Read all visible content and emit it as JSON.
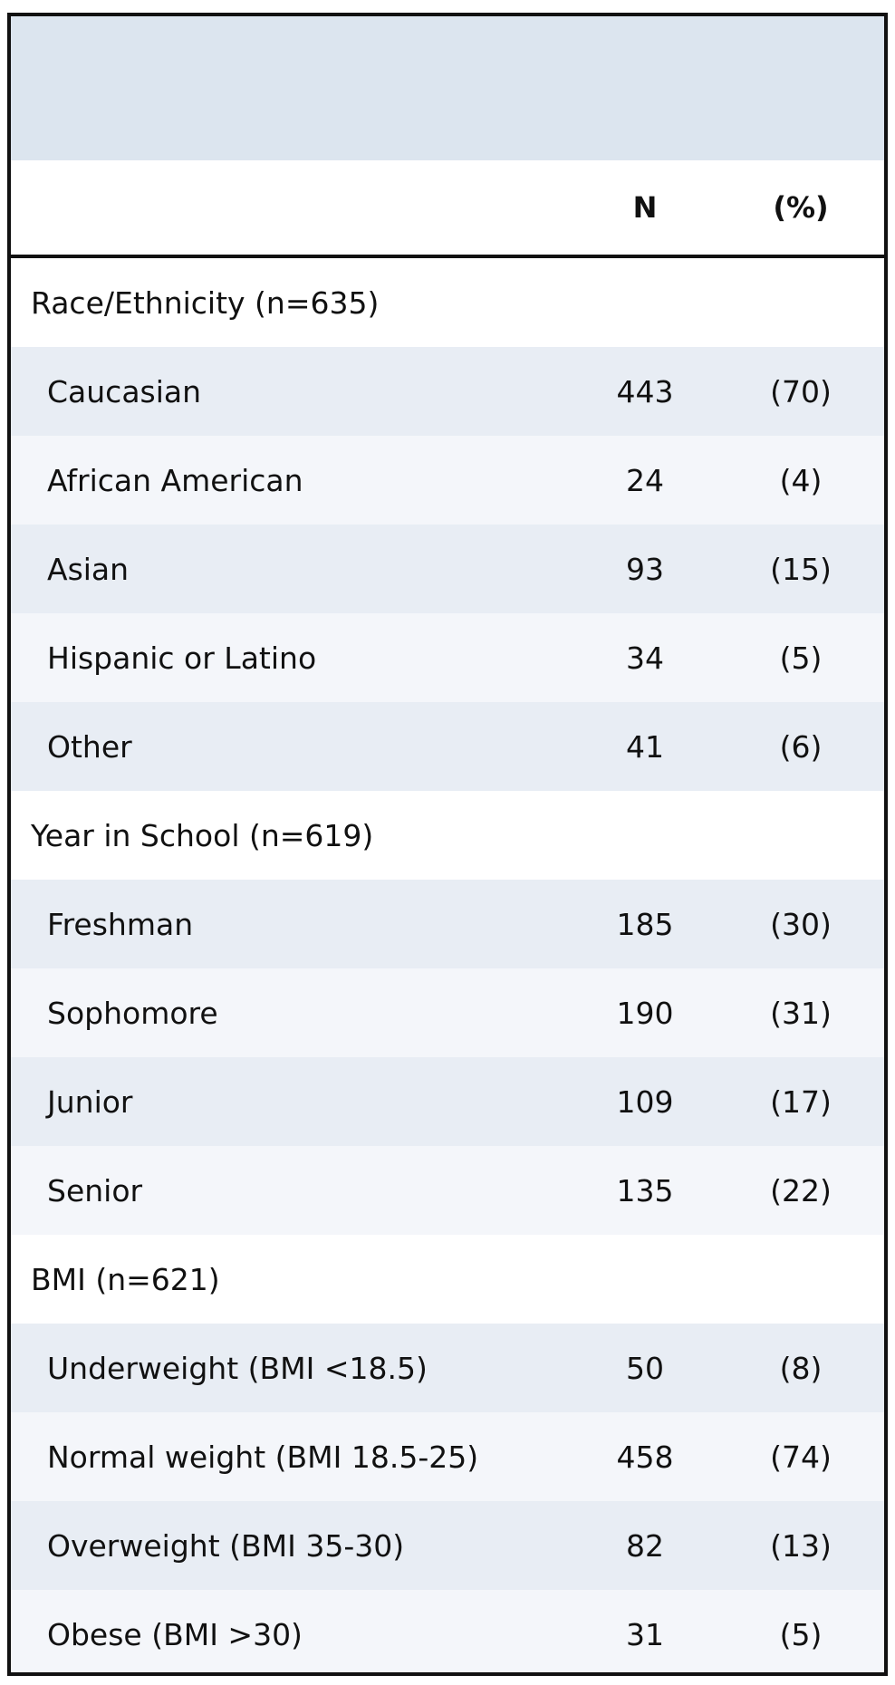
{
  "table": {
    "columns": {
      "label": "",
      "n": "N",
      "pct": "(%)"
    },
    "rows": [
      {
        "type": "section",
        "label": "Race/Ethnicity (n=635)",
        "n": "",
        "pct": ""
      },
      {
        "type": "item",
        "label": "Caucasian",
        "n": "443",
        "pct": "(70)"
      },
      {
        "type": "item",
        "label": "African American",
        "n": "24",
        "pct": "(4)"
      },
      {
        "type": "item",
        "label": "Asian",
        "n": "93",
        "pct": "(15)"
      },
      {
        "type": "item",
        "label": "Hispanic or Latino",
        "n": "34",
        "pct": "(5)"
      },
      {
        "type": "item",
        "label": "Other",
        "n": "41",
        "pct": "(6)"
      },
      {
        "type": "section",
        "label": "Year in School (n=619)",
        "n": "",
        "pct": ""
      },
      {
        "type": "item",
        "label": "Freshman",
        "n": "185",
        "pct": "(30)"
      },
      {
        "type": "item",
        "label": "Sophomore",
        "n": "190",
        "pct": "(31)"
      },
      {
        "type": "item",
        "label": "Junior",
        "n": "109",
        "pct": "(17)"
      },
      {
        "type": "item",
        "label": "Senior",
        "n": "135",
        "pct": "(22)"
      },
      {
        "type": "section",
        "label": "BMI (n=621)",
        "n": "",
        "pct": ""
      },
      {
        "type": "item",
        "label": "Underweight (BMI <18.5)",
        "n": "50",
        "pct": "(8)"
      },
      {
        "type": "item",
        "label": "Normal weight (BMI 18.5-25)",
        "n": "458",
        "pct": "(74)"
      },
      {
        "type": "item",
        "label": "Overweight (BMI 35-30)",
        "n": "82",
        "pct": "(13)"
      },
      {
        "type": "item",
        "label": "Obese (BMI >30)",
        "n": "31",
        "pct": "(5)"
      }
    ]
  },
  "colors": {
    "title_band": "#dce5ef",
    "row_dark": "#e8edf4",
    "row_light": "#f4f6fa",
    "border": "#111111"
  }
}
